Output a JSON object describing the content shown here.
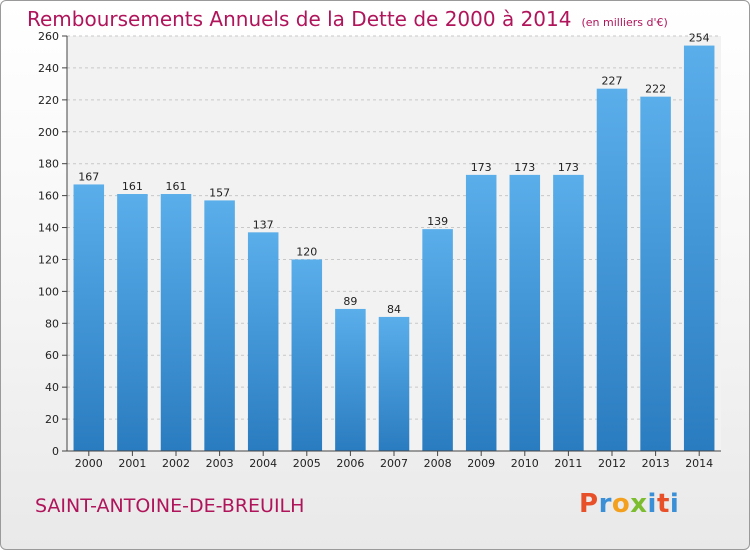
{
  "chart_data": {
    "type": "bar",
    "title": "Remboursements Annuels de la Dette de 2000 à 2014",
    "unit_note": "(en milliers d'€)",
    "categories": [
      "2000",
      "2001",
      "2002",
      "2003",
      "2004",
      "2005",
      "2006",
      "2007",
      "2008",
      "2009",
      "2010",
      "2011",
      "2012",
      "2013",
      "2014"
    ],
    "values": [
      167,
      161,
      161,
      157,
      137,
      120,
      89,
      84,
      139,
      173,
      173,
      173,
      227,
      222,
      254
    ],
    "ylim": [
      0,
      260
    ],
    "yticks": [
      0,
      20,
      40,
      60,
      80,
      100,
      120,
      140,
      160,
      180,
      200,
      220,
      240,
      260
    ],
    "grid": true,
    "bar_color": "#3d93d8"
  },
  "footer": {
    "town": "SAINT-ANTOINE-DE-BREUILH",
    "logo_letters": [
      "P",
      "r",
      "o",
      "x",
      "i",
      "t",
      "i"
    ],
    "logo_colors": [
      "#e8502a",
      "#3a8fd6",
      "#f2a01d",
      "#7bbd2f",
      "#3a8fd6",
      "#e8502a",
      "#3a8fd6"
    ]
  }
}
